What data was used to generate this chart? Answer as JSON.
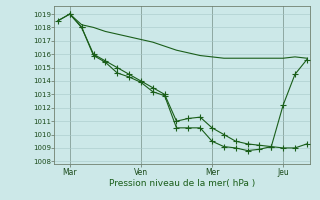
{
  "bg_color": "#cce8e8",
  "line_color": "#1a5e1a",
  "ylabel_ticks": [
    1008,
    1009,
    1010,
    1011,
    1012,
    1013,
    1014,
    1015,
    1016,
    1017,
    1018,
    1019
  ],
  "ylim": [
    1007.8,
    1019.6
  ],
  "xlim": [
    -0.3,
    21.3
  ],
  "xlabel": "Pression niveau de la mer( hPa )",
  "day_labels": [
    "Mar",
    "Ven",
    "Mer",
    "Jeu"
  ],
  "day_positions": [
    1,
    7,
    13,
    19
  ],
  "line1_x": [
    0,
    1,
    2,
    3,
    4,
    5,
    6,
    7,
    8,
    9,
    10,
    11,
    12,
    13,
    14,
    15,
    16,
    17,
    18,
    19,
    20,
    21
  ],
  "line1_y": [
    1018.5,
    1019.0,
    1018.2,
    1018.0,
    1017.7,
    1017.5,
    1017.3,
    1017.1,
    1016.9,
    1016.6,
    1016.3,
    1016.1,
    1015.9,
    1015.8,
    1015.7,
    1015.7,
    1015.7,
    1015.7,
    1015.7,
    1015.7,
    1015.8,
    1015.7
  ],
  "line2_x": [
    0,
    1,
    2,
    3,
    4,
    5,
    6,
    7,
    8,
    9,
    10,
    11,
    12,
    13,
    14,
    15,
    16,
    17,
    18,
    19,
    20,
    21
  ],
  "line2_y": [
    1018.5,
    1019.0,
    1018.0,
    1016.0,
    1015.5,
    1015.0,
    1014.5,
    1014.0,
    1013.5,
    1013.0,
    1011.0,
    1011.2,
    1011.3,
    1010.5,
    1010.0,
    1009.5,
    1009.3,
    1009.2,
    1009.1,
    1009.0,
    1009.0,
    1009.3
  ],
  "line3_x": [
    1,
    2,
    3,
    4,
    5,
    6,
    7,
    8,
    9,
    10,
    11,
    12,
    13,
    14,
    15,
    16,
    17,
    18,
    19,
    20,
    21
  ],
  "line3_y": [
    1019.0,
    1018.0,
    1015.9,
    1015.4,
    1014.6,
    1014.3,
    1013.9,
    1013.2,
    1012.9,
    1010.5,
    1010.5,
    1010.5,
    1009.5,
    1009.1,
    1009.0,
    1008.8,
    1008.9,
    1009.1,
    1012.2,
    1014.5,
    1015.6
  ]
}
